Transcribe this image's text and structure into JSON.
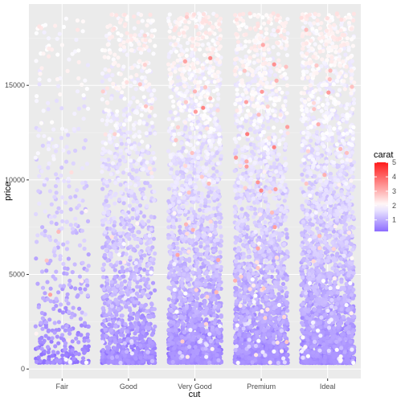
{
  "chart_data": {
    "type": "scatter",
    "subtype": "jitter",
    "xlabel": "cut",
    "ylabel": "price",
    "categories": [
      "Fair",
      "Good",
      "Very Good",
      "Premium",
      "Ideal"
    ],
    "y_ticks": [
      0,
      5000,
      10000,
      15000
    ],
    "y_tick_labels": [
      "0",
      "5000",
      "10000",
      "15000"
    ],
    "ylim": [
      -500,
      19300
    ],
    "grid": true,
    "color_legend": {
      "title": "carat",
      "placement": "right",
      "ticks": [
        1,
        2,
        3,
        4,
        5
      ],
      "tick_labels": [
        "1",
        "2",
        "3",
        "4",
        "5"
      ],
      "range": [
        0.2,
        5.01
      ],
      "low_color": "#8c6cff",
      "mid_color": "#ffffff",
      "high_color": "#ff1a1a",
      "midpoint": 2
    },
    "series": [
      {
        "name": "Fair",
        "price_range": [
          337,
          18574
        ],
        "carat_range": [
          0.22,
          5.01
        ]
      },
      {
        "name": "Good",
        "price_range": [
          327,
          18788
        ],
        "carat_range": [
          0.23,
          3.01
        ]
      },
      {
        "name": "Very Good",
        "price_range": [
          336,
          18818
        ],
        "carat_range": [
          0.2,
          4.0
        ]
      },
      {
        "name": "Premium",
        "price_range": [
          326,
          18823
        ],
        "carat_range": [
          0.2,
          4.01
        ]
      },
      {
        "name": "Ideal",
        "price_range": [
          326,
          18806
        ],
        "carat_range": [
          0.2,
          3.5
        ]
      }
    ]
  },
  "colors": {
    "panel_background": "#ebebeb",
    "grid_major": "#ffffff",
    "grid_minor": "#f5f5f5"
  }
}
